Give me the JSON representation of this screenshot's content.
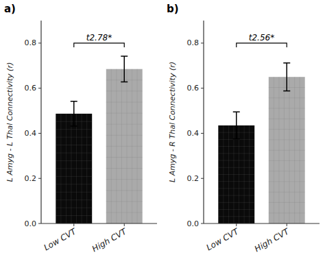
{
  "chart_data": [
    {
      "type": "bar",
      "title": "a)",
      "ylabel": "L Amyg - L Thal Connectivity (r)",
      "categories": [
        "Low CVT",
        "High CVT"
      ],
      "values": [
        0.487,
        0.685
      ],
      "errors": [
        0.055,
        0.057
      ],
      "colors": [
        "#0a0a0a",
        "#aaaaaa"
      ],
      "ylim": [
        0.0,
        0.9
      ],
      "yticks": [
        {
          "value": 0.0,
          "label": "0.0"
        },
        0.2,
        0.4,
        0.6,
        0.8
      ],
      "annotations": [
        {
          "text": "t2.78*",
          "from": "Low CVT",
          "to": "High CVT",
          "y": 0.8
        }
      ]
    },
    {
      "type": "bar",
      "title": "b)",
      "ylabel": "L Amyg - R Thal Connectivity (r)",
      "categories": [
        "Low CVT",
        "High CVT"
      ],
      "values": [
        0.435,
        0.65
      ],
      "errors": [
        0.06,
        0.062
      ],
      "colors": [
        "#0a0a0a",
        "#aaaaaa"
      ],
      "ylim": [
        0.0,
        0.9
      ],
      "yticks": [
        {
          "value": 0.0,
          "label": "0.0"
        },
        0.2,
        0.4,
        0.6,
        0.8
      ],
      "annotations": [
        {
          "text": "t2.56*",
          "from": "Low CVT",
          "to": "High CVT",
          "y": 0.8
        }
      ]
    }
  ]
}
